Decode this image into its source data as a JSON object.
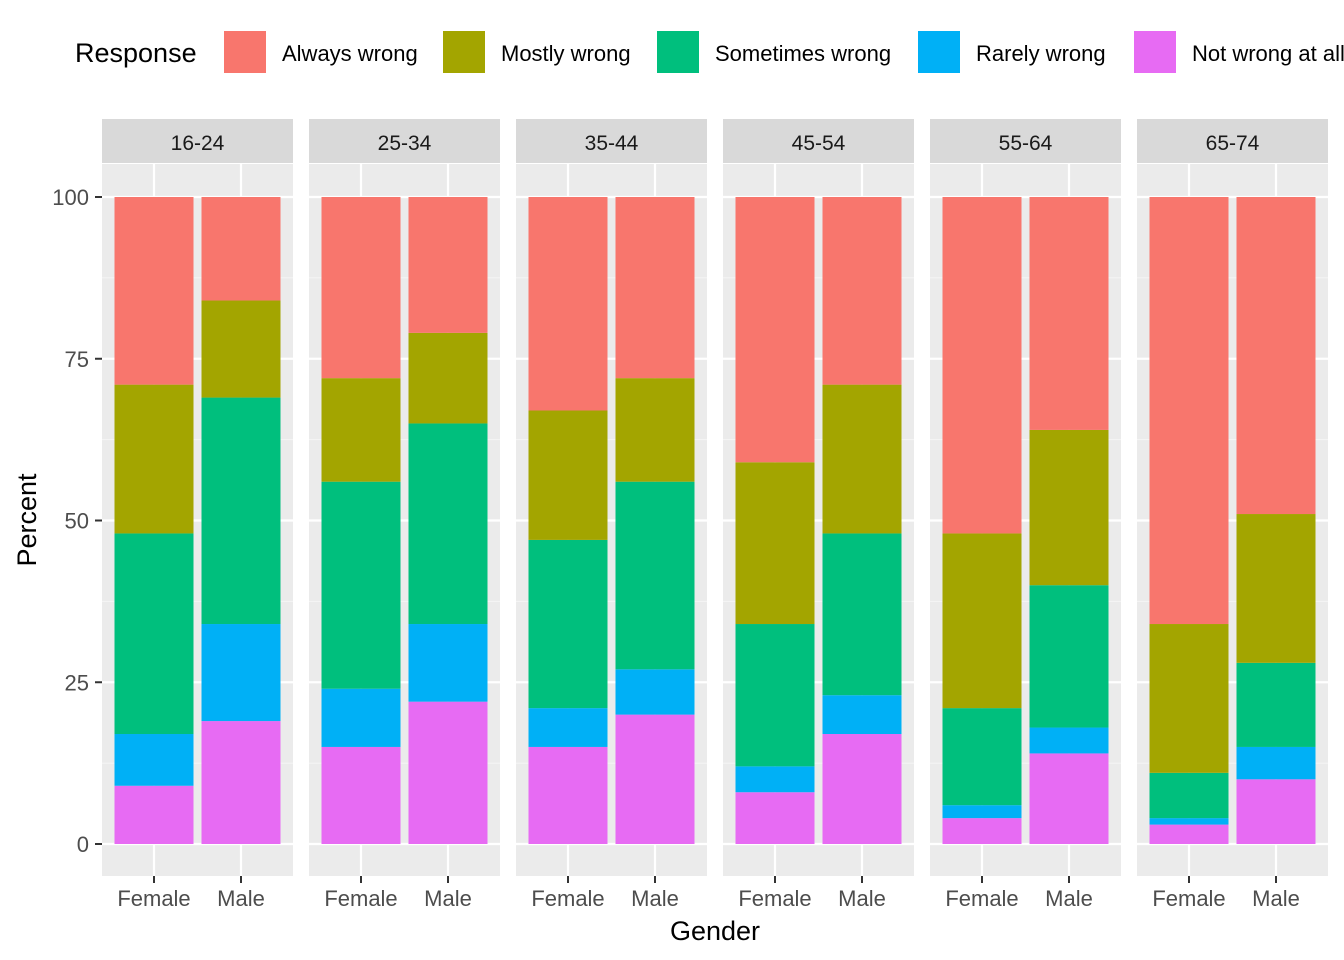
{
  "chart_data": {
    "type": "bar",
    "stacked": true,
    "xlabel": "Gender",
    "ylabel": "Percent",
    "ylim": [
      0,
      100
    ],
    "yticks": [
      0,
      25,
      50,
      75,
      100
    ],
    "categories": [
      "Female",
      "Male"
    ],
    "legend": {
      "title": "Response",
      "position": "top",
      "entries": [
        {
          "label": "Always wrong",
          "color": "#F8766D"
        },
        {
          "label": "Mostly wrong",
          "color": "#A3A500"
        },
        {
          "label": "Sometimes wrong",
          "color": "#00BF7D"
        },
        {
          "label": "Rarely wrong",
          "color": "#00B0F6"
        },
        {
          "label": "Not wrong at all",
          "color": "#E76BF3"
        }
      ]
    },
    "stack_order_bottom_to_top": [
      "Not wrong at all",
      "Rarely wrong",
      "Sometimes wrong",
      "Mostly wrong",
      "Always wrong"
    ],
    "facets": [
      {
        "label": "16-24",
        "bars": [
          {
            "category": "Female",
            "values": {
              "Not wrong at all": 9,
              "Rarely wrong": 8,
              "Sometimes wrong": 31,
              "Mostly wrong": 23,
              "Always wrong": 29
            }
          },
          {
            "category": "Male",
            "values": {
              "Not wrong at all": 19,
              "Rarely wrong": 15,
              "Sometimes wrong": 35,
              "Mostly wrong": 15,
              "Always wrong": 16
            }
          }
        ]
      },
      {
        "label": "25-34",
        "bars": [
          {
            "category": "Female",
            "values": {
              "Not wrong at all": 15,
              "Rarely wrong": 9,
              "Sometimes wrong": 32,
              "Mostly wrong": 16,
              "Always wrong": 28
            }
          },
          {
            "category": "Male",
            "values": {
              "Not wrong at all": 22,
              "Rarely wrong": 12,
              "Sometimes wrong": 31,
              "Mostly wrong": 14,
              "Always wrong": 21
            }
          }
        ]
      },
      {
        "label": "35-44",
        "bars": [
          {
            "category": "Female",
            "values": {
              "Not wrong at all": 15,
              "Rarely wrong": 6,
              "Sometimes wrong": 26,
              "Mostly wrong": 20,
              "Always wrong": 33
            }
          },
          {
            "category": "Male",
            "values": {
              "Not wrong at all": 20,
              "Rarely wrong": 7,
              "Sometimes wrong": 29,
              "Mostly wrong": 16,
              "Always wrong": 28
            }
          }
        ]
      },
      {
        "label": "45-54",
        "bars": [
          {
            "category": "Female",
            "values": {
              "Not wrong at all": 8,
              "Rarely wrong": 4,
              "Sometimes wrong": 22,
              "Mostly wrong": 25,
              "Always wrong": 41
            }
          },
          {
            "category": "Male",
            "values": {
              "Not wrong at all": 17,
              "Rarely wrong": 6,
              "Sometimes wrong": 25,
              "Mostly wrong": 23,
              "Always wrong": 29
            }
          }
        ]
      },
      {
        "label": "55-64",
        "bars": [
          {
            "category": "Female",
            "values": {
              "Not wrong at all": 4,
              "Rarely wrong": 2,
              "Sometimes wrong": 15,
              "Mostly wrong": 27,
              "Always wrong": 52
            }
          },
          {
            "category": "Male",
            "values": {
              "Not wrong at all": 14,
              "Rarely wrong": 4,
              "Sometimes wrong": 22,
              "Mostly wrong": 24,
              "Always wrong": 36
            }
          }
        ]
      },
      {
        "label": "65-74",
        "bars": [
          {
            "category": "Female",
            "values": {
              "Not wrong at all": 3,
              "Rarely wrong": 1,
              "Sometimes wrong": 7,
              "Mostly wrong": 23,
              "Always wrong": 66
            }
          },
          {
            "category": "Male",
            "values": {
              "Not wrong at all": 10,
              "Rarely wrong": 5,
              "Sometimes wrong": 13,
              "Mostly wrong": 23,
              "Always wrong": 49
            }
          }
        ]
      }
    ],
    "grid": true,
    "panel_background": "#EBEBEB",
    "strip_background": "#D9D9D9"
  }
}
